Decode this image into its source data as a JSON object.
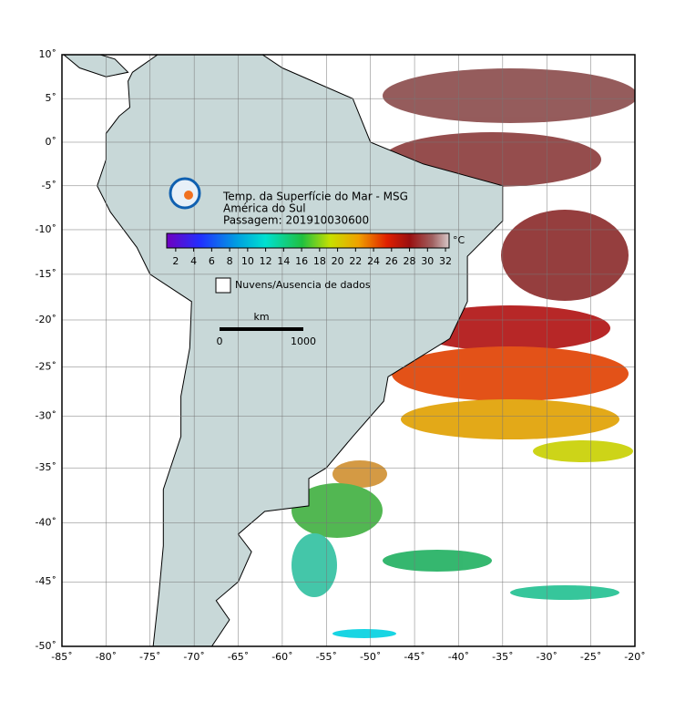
{
  "map": {
    "xlim": [
      -85,
      -20
    ],
    "ylim": [
      -50,
      10
    ],
    "xticks": [
      {
        "value": -85,
        "label": "-85˚"
      },
      {
        "value": -80,
        "label": "-80˚"
      },
      {
        "value": -75,
        "label": "-75˚"
      },
      {
        "value": -70,
        "label": "-70˚"
      },
      {
        "value": -65,
        "label": "-65˚"
      },
      {
        "value": -60,
        "label": "-60˚"
      },
      {
        "value": -55,
        "label": "-55˚"
      },
      {
        "value": -50,
        "label": "-50˚"
      },
      {
        "value": -45,
        "label": "-45˚"
      },
      {
        "value": -40,
        "label": "-40˚"
      },
      {
        "value": -35,
        "label": "-35˚"
      },
      {
        "value": -30,
        "label": "-30˚"
      },
      {
        "value": -25,
        "label": "-25˚"
      },
      {
        "value": -20,
        "label": "-20˚"
      }
    ],
    "yticks": [
      {
        "value": 10,
        "label": "10˚"
      },
      {
        "value": 5,
        "label": "5˚"
      },
      {
        "value": 0,
        "label": "0˚"
      },
      {
        "value": -5,
        "label": "-5˚"
      },
      {
        "value": -10,
        "label": "-10˚"
      },
      {
        "value": -15,
        "label": "-15˚"
      },
      {
        "value": -20,
        "label": "-20˚"
      },
      {
        "value": -25,
        "label": "-25˚"
      },
      {
        "value": -30,
        "label": "-30˚"
      },
      {
        "value": -35,
        "label": "-35˚"
      },
      {
        "value": -40,
        "label": "-40˚"
      },
      {
        "value": -45,
        "label": "-45˚"
      },
      {
        "value": -50,
        "label": "-50˚"
      }
    ]
  },
  "title_lines": [
    "Temp. da Superfície do Mar - MSG",
    "América do Sul",
    "Passagem: 201910030600"
  ],
  "colorbar": {
    "unit": "°C",
    "clim": [
      1,
      32.4
    ],
    "ticks": [
      2,
      4,
      6,
      8,
      10,
      12,
      14,
      16,
      18,
      20,
      22,
      24,
      26,
      28,
      30,
      32
    ]
  },
  "legend": "Nuvens/Ausencia de dados",
  "scale_bar": {
    "unit": "km",
    "labels": [
      "0",
      "1000"
    ]
  }
}
